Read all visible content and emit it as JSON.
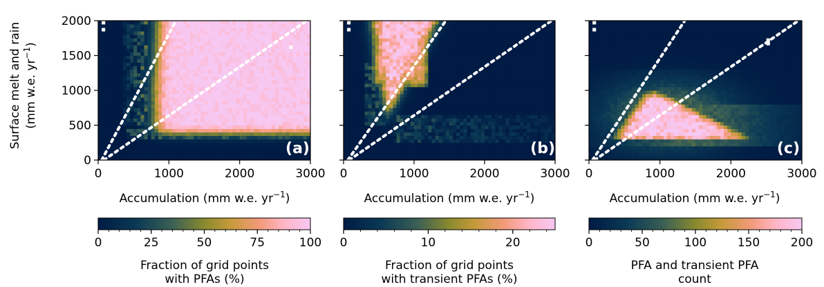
{
  "colors": {
    "stops": [
      "#001b44",
      "#0b3a55",
      "#3b6055",
      "#8a8a2e",
      "#c59a3a",
      "#f39a7a",
      "#ffb6c8",
      "#f7c8f2"
    ]
  },
  "chart_data": [
    {
      "type": "heatmap",
      "panel_label": "(a)",
      "xlabel": "Accumulation (mm w.e. yr",
      "xlabel_sup": "−1",
      "xlabel_tail": ")",
      "ylabel_line1": "Surface melt and rain",
      "ylabel_line2": "(mm w.e. yr",
      "ylabel_sup": "−1",
      "ylabel_tail": ")",
      "xlim": [
        0,
        3000
      ],
      "ylim": [
        0,
        2000
      ],
      "xticks": [
        "0",
        "1000",
        "2000",
        "3000"
      ],
      "yticks": [
        "0",
        "500",
        "1000",
        "1500",
        "2000"
      ],
      "dotted_lines": [
        {
          "x": [
            50,
            1100
          ],
          "y": [
            0,
            2000
          ]
        },
        {
          "x": [
            80,
            2950
          ],
          "y": [
            0,
            2000
          ]
        }
      ],
      "colorbar": {
        "min": 0,
        "max": 100,
        "ticks": [
          "0",
          "25",
          "50",
          "75",
          "100"
        ],
        "label_line1": "Fraction of grid points",
        "label_line2": "with PFAs (%)"
      }
    },
    {
      "type": "heatmap",
      "panel_label": "(b)",
      "xlabel": "Accumulation (mm w.e. yr",
      "xlabel_sup": "−1",
      "xlabel_tail": ")",
      "xlim": [
        0,
        3000
      ],
      "ylim": [
        0,
        2000
      ],
      "xticks": [
        "0",
        "1000",
        "2000",
        "3000"
      ],
      "dotted_lines": [
        {
          "x": [
            60,
            1450
          ],
          "y": [
            0,
            2000
          ]
        },
        {
          "x": [
            80,
            2950
          ],
          "y": [
            0,
            2000
          ]
        }
      ],
      "colorbar": {
        "min": 0,
        "max": 25,
        "ticks": [
          "0",
          "10",
          "20"
        ],
        "label_line1": "Fraction of grid points",
        "label_line2": "with transient PFAs (%)"
      }
    },
    {
      "type": "heatmap",
      "panel_label": "(c)",
      "xlabel": "Accumulation (mm w.e. yr",
      "xlabel_sup": "−1",
      "xlabel_tail": ")",
      "xlim": [
        0,
        3000
      ],
      "ylim": [
        0,
        2000
      ],
      "xticks": [
        "0",
        "1000",
        "2000",
        "3000"
      ],
      "dotted_lines": [
        {
          "x": [
            50,
            1350
          ],
          "y": [
            0,
            2000
          ]
        },
        {
          "x": [
            80,
            2950
          ],
          "y": [
            0,
            2000
          ]
        }
      ],
      "colorbar": {
        "min": 0,
        "max": 200,
        "ticks": [
          "0",
          "50",
          "100",
          "150",
          "200"
        ],
        "label_line1": "PFA and transient PFA",
        "label_line2": "count"
      }
    }
  ]
}
